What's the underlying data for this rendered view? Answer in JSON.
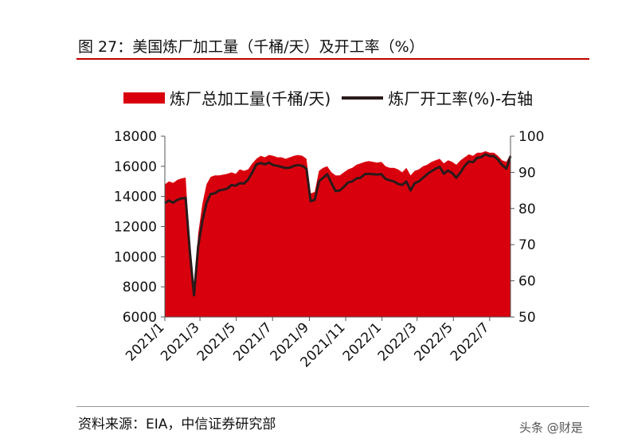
{
  "figure": {
    "title": "图 27：美国炼厂加工量（千桶/天）及开工率（%）",
    "source": "资料来源：EIA，中信证券研究部",
    "watermark": "头条 @财是"
  },
  "colors": {
    "area": "#d9000d",
    "line": "#2a1a1a",
    "title_rule": "#c00000"
  },
  "chart_data": {
    "type": "area",
    "title": "",
    "legend": {
      "placement": "top",
      "entries": [
        "炼厂总加工量(千桶/天)",
        "炼厂开工率(%)-右轴"
      ]
    },
    "x_tick_labels": [
      "2021/1",
      "2021/3",
      "2021/5",
      "2021/7",
      "2021/9",
      "2021/11",
      "2022/1",
      "2022/3",
      "2022/5",
      "2022/7"
    ],
    "y_left": {
      "min": 6000,
      "max": 18000,
      "ticks": [
        6000,
        8000,
        10000,
        12000,
        14000,
        16000,
        18000
      ]
    },
    "y_right": {
      "min": 50,
      "max": 100,
      "ticks": [
        50,
        60,
        70,
        80,
        90,
        100
      ]
    },
    "grid": false,
    "series": [
      {
        "name": "炼厂总加工量(千桶/天)",
        "type": "area",
        "axis": "left",
        "points": [
          [
            "2021-01-01",
            14800
          ],
          [
            "2021-01-08",
            15000
          ],
          [
            "2021-01-15",
            14900
          ],
          [
            "2021-01-22",
            15100
          ],
          [
            "2021-01-29",
            15200
          ],
          [
            "2021-02-05",
            15250
          ],
          [
            "2021-02-12",
            10500
          ],
          [
            "2021-02-19",
            7500
          ],
          [
            "2021-02-26",
            11500
          ],
          [
            "2021-03-05",
            13500
          ],
          [
            "2021-03-12",
            14800
          ],
          [
            "2021-03-19",
            15300
          ],
          [
            "2021-03-26",
            15400
          ],
          [
            "2021-04-02",
            15400
          ],
          [
            "2021-04-09",
            15450
          ],
          [
            "2021-04-16",
            15500
          ],
          [
            "2021-04-23",
            15600
          ],
          [
            "2021-04-30",
            15500
          ],
          [
            "2021-05-07",
            15800
          ],
          [
            "2021-05-14",
            15700
          ],
          [
            "2021-05-21",
            15800
          ],
          [
            "2021-05-28",
            16200
          ],
          [
            "2021-06-04",
            16500
          ],
          [
            "2021-06-11",
            16700
          ],
          [
            "2021-06-18",
            16600
          ],
          [
            "2021-06-25",
            16750
          ],
          [
            "2021-07-02",
            16700
          ],
          [
            "2021-07-09",
            16600
          ],
          [
            "2021-07-16",
            16600
          ],
          [
            "2021-07-23",
            16500
          ],
          [
            "2021-07-30",
            16600
          ],
          [
            "2021-08-06",
            16700
          ],
          [
            "2021-08-13",
            16750
          ],
          [
            "2021-08-20",
            16700
          ],
          [
            "2021-08-27",
            16500
          ],
          [
            "2021-09-03",
            14200
          ],
          [
            "2021-09-10",
            14300
          ],
          [
            "2021-09-17",
            15700
          ],
          [
            "2021-09-24",
            15900
          ],
          [
            "2021-10-01",
            16000
          ],
          [
            "2021-10-08",
            15600
          ],
          [
            "2021-10-15",
            15400
          ],
          [
            "2021-10-22",
            15400
          ],
          [
            "2021-10-29",
            15600
          ],
          [
            "2021-11-05",
            15800
          ],
          [
            "2021-11-12",
            15900
          ],
          [
            "2021-11-19",
            16100
          ],
          [
            "2021-11-26",
            16200
          ],
          [
            "2021-12-03",
            16300
          ],
          [
            "2021-12-10",
            16350
          ],
          [
            "2021-12-17",
            16300
          ],
          [
            "2021-12-24",
            16250
          ],
          [
            "2021-12-31",
            16300
          ],
          [
            "2022-01-07",
            16000
          ],
          [
            "2022-01-14",
            15900
          ],
          [
            "2022-01-21",
            15900
          ],
          [
            "2022-01-28",
            15800
          ],
          [
            "2022-02-04",
            15600
          ],
          [
            "2022-02-11",
            15900
          ],
          [
            "2022-02-18",
            15400
          ],
          [
            "2022-02-25",
            15700
          ],
          [
            "2022-03-04",
            15800
          ],
          [
            "2022-03-11",
            16000
          ],
          [
            "2022-03-18",
            16100
          ],
          [
            "2022-03-25",
            16300
          ],
          [
            "2022-04-01",
            16400
          ],
          [
            "2022-04-08",
            16500
          ],
          [
            "2022-04-15",
            16200
          ],
          [
            "2022-04-22",
            16400
          ],
          [
            "2022-04-29",
            16300
          ],
          [
            "2022-05-06",
            16100
          ],
          [
            "2022-05-13",
            16400
          ],
          [
            "2022-05-20",
            16600
          ],
          [
            "2022-05-27",
            16800
          ],
          [
            "2022-06-03",
            16700
          ],
          [
            "2022-06-10",
            16900
          ],
          [
            "2022-06-17",
            16900
          ],
          [
            "2022-06-24",
            17000
          ],
          [
            "2022-07-01",
            16900
          ],
          [
            "2022-07-08",
            16900
          ],
          [
            "2022-07-15",
            16700
          ],
          [
            "2022-07-22",
            16400
          ],
          [
            "2022-07-29",
            16300
          ],
          [
            "2022-08-05",
            16800
          ]
        ]
      },
      {
        "name": "炼厂开工率(%)-右轴",
        "type": "line",
        "axis": "right",
        "points": [
          [
            "2021-01-01",
            81.5
          ],
          [
            "2021-01-08",
            82.2
          ],
          [
            "2021-01-15",
            81.6
          ],
          [
            "2021-01-22",
            82.4
          ],
          [
            "2021-01-29",
            82.8
          ],
          [
            "2021-02-05",
            82.9
          ],
          [
            "2021-02-12",
            68.0
          ],
          [
            "2021-02-19",
            56.0
          ],
          [
            "2021-02-26",
            69.5
          ],
          [
            "2021-03-05",
            76.5
          ],
          [
            "2021-03-12",
            81.5
          ],
          [
            "2021-03-19",
            84.0
          ],
          [
            "2021-03-26",
            84.2
          ],
          [
            "2021-04-02",
            85.0
          ],
          [
            "2021-04-09",
            85.2
          ],
          [
            "2021-04-16",
            85.5
          ],
          [
            "2021-04-23",
            86.5
          ],
          [
            "2021-04-30",
            86.3
          ],
          [
            "2021-05-07",
            87.0
          ],
          [
            "2021-05-14",
            86.9
          ],
          [
            "2021-05-21",
            88.0
          ],
          [
            "2021-05-28",
            90.0
          ],
          [
            "2021-06-04",
            92.2
          ],
          [
            "2021-06-11",
            92.6
          ],
          [
            "2021-06-18",
            92.2
          ],
          [
            "2021-06-25",
            92.7
          ],
          [
            "2021-07-02",
            92.0
          ],
          [
            "2021-07-09",
            91.8
          ],
          [
            "2021-07-16",
            91.5
          ],
          [
            "2021-07-23",
            91.2
          ],
          [
            "2021-07-30",
            91.3
          ],
          [
            "2021-08-06",
            91.8
          ],
          [
            "2021-08-13",
            92.0
          ],
          [
            "2021-08-20",
            91.8
          ],
          [
            "2021-08-27",
            91.0
          ],
          [
            "2021-09-03",
            82.0
          ],
          [
            "2021-09-10",
            82.4
          ],
          [
            "2021-09-17",
            87.5
          ],
          [
            "2021-09-24",
            88.5
          ],
          [
            "2021-10-01",
            89.5
          ],
          [
            "2021-10-08",
            87.0
          ],
          [
            "2021-10-15",
            84.8
          ],
          [
            "2021-10-22",
            85.0
          ],
          [
            "2021-10-29",
            86.0
          ],
          [
            "2021-11-05",
            87.2
          ],
          [
            "2021-11-12",
            87.5
          ],
          [
            "2021-11-19",
            88.3
          ],
          [
            "2021-11-26",
            88.5
          ],
          [
            "2021-12-03",
            89.5
          ],
          [
            "2021-12-10",
            89.6
          ],
          [
            "2021-12-17",
            89.5
          ],
          [
            "2021-12-24",
            89.4
          ],
          [
            "2021-12-31",
            89.5
          ],
          [
            "2022-01-07",
            88.2
          ],
          [
            "2022-01-14",
            87.8
          ],
          [
            "2022-01-21",
            87.5
          ],
          [
            "2022-01-28",
            86.8
          ],
          [
            "2022-02-04",
            86.5
          ],
          [
            "2022-02-11",
            87.5
          ],
          [
            "2022-02-18",
            85.0
          ],
          [
            "2022-02-25",
            87.0
          ],
          [
            "2022-03-04",
            87.5
          ],
          [
            "2022-03-11",
            88.5
          ],
          [
            "2022-03-18",
            89.5
          ],
          [
            "2022-03-25",
            90.3
          ],
          [
            "2022-04-01",
            91.0
          ],
          [
            "2022-04-08",
            91.5
          ],
          [
            "2022-04-15",
            89.6
          ],
          [
            "2022-04-22",
            90.5
          ],
          [
            "2022-04-29",
            89.8
          ],
          [
            "2022-05-06",
            88.5
          ],
          [
            "2022-05-13",
            90.0
          ],
          [
            "2022-05-20",
            91.8
          ],
          [
            "2022-05-27",
            93.0
          ],
          [
            "2022-06-03",
            92.8
          ],
          [
            "2022-06-10",
            94.0
          ],
          [
            "2022-06-17",
            94.2
          ],
          [
            "2022-06-24",
            95.0
          ],
          [
            "2022-07-01",
            94.5
          ],
          [
            "2022-07-08",
            94.5
          ],
          [
            "2022-07-15",
            93.5
          ],
          [
            "2022-07-22",
            92.0
          ],
          [
            "2022-07-29",
            91.0
          ],
          [
            "2022-08-05",
            94.5
          ]
        ]
      }
    ]
  }
}
